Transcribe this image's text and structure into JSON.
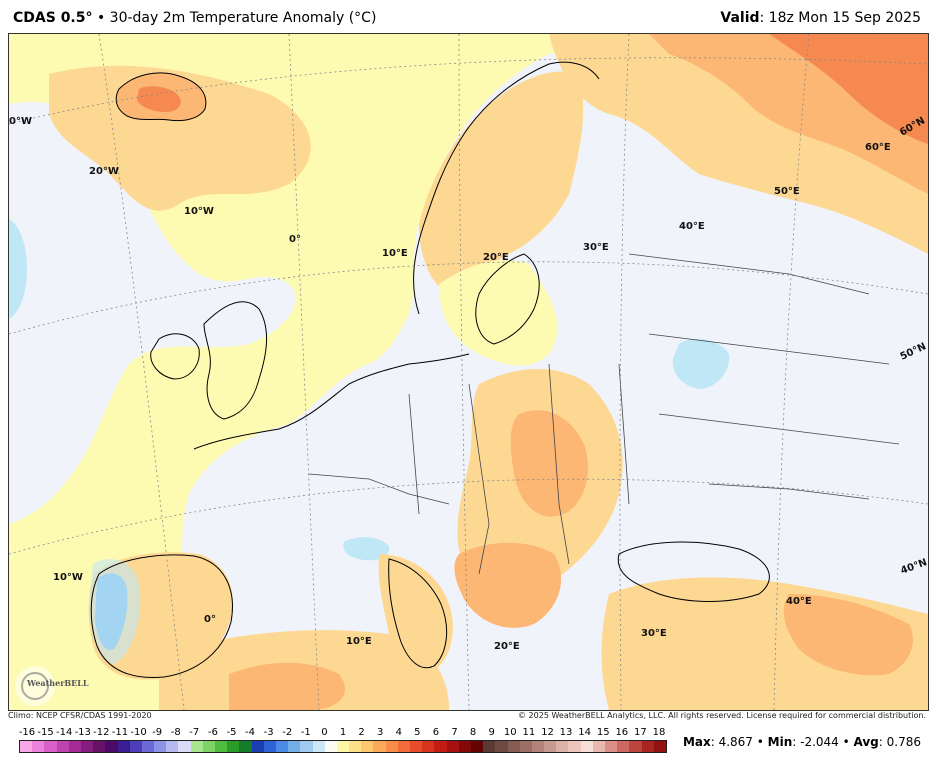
{
  "header": {
    "model": "CDAS 0.5°",
    "separator": " • ",
    "product": "30-day 2m Temperature Anomaly (°C)",
    "valid_label": "Valid",
    "valid_time": ": 18z Mon 15 Sep 2025"
  },
  "map": {
    "background_color": "#f1f3fa",
    "land_near_zero_color": "#fdfab2",
    "warm_color": "#fdd893",
    "warmer_color": "#fbb773",
    "hot_color": "#f5894f",
    "cool_color": "#bfe7f5",
    "cold_color": "#78b6ec",
    "coastline_color": "#000000",
    "border_color": "#444444",
    "graticule_labels": {
      "w30": "0°W",
      "w20": "20°W",
      "w10_top": "10°W",
      "zero_top": "0°",
      "e10_top": "10°E",
      "e20_top": "20°E",
      "e30_top": "30°E",
      "e40_top": "40°E",
      "e50": "50°E",
      "e60": "60°E",
      "n60": "60°N",
      "n50": "50°N",
      "n40": "40°N",
      "w10_bottom": "10°W",
      "zero_bottom": "0°",
      "e10_bottom": "10°E",
      "e20_bottom": "20°E",
      "e30_bottom": "30°E",
      "e40_bottom": "40°E"
    },
    "watermark_text": "WeatherBELL"
  },
  "footer": {
    "climo": "Climo: NCEP CFSR/CDAS 1991-2020",
    "copyright": "© 2025 WeatherBELL Analytics, LLC. All rights reserved. License required for commercial distribution."
  },
  "colorbar": {
    "ticks": [
      "-16",
      "-15",
      "-14",
      "-13",
      "-12",
      "-11",
      "-10",
      "-9",
      "-8",
      "-7",
      "-6",
      "-5",
      "-4",
      "-3",
      "-2",
      "-1",
      "0",
      "1",
      "2",
      "3",
      "4",
      "5",
      "6",
      "7",
      "8",
      "9",
      "10",
      "11",
      "12",
      "13",
      "14",
      "15",
      "16",
      "17",
      "18"
    ],
    "colors": [
      "#f7a6e8",
      "#eb83dc",
      "#d761c8",
      "#c043b2",
      "#a42c99",
      "#861c80",
      "#661266",
      "#4a0a66",
      "#3a1d95",
      "#4d3fb9",
      "#6c68d6",
      "#8c92e6",
      "#b6b9f0",
      "#d9dcf7",
      "#a9e48f",
      "#7fd266",
      "#4fbc3e",
      "#2a9c29",
      "#157c2b",
      "#1a3fb0",
      "#2f62d6",
      "#4b8ae6",
      "#74ade8",
      "#a0cbef",
      "#cbe6f6",
      "#fbfbf3",
      "#fdf7a6",
      "#fde08a",
      "#fdc86e",
      "#fca95c",
      "#f98c49",
      "#f36b39",
      "#e84d2b",
      "#d8331f",
      "#c21d15",
      "#a51010",
      "#840808",
      "#630303",
      "#5a3a33",
      "#6e4a42",
      "#845c52",
      "#9b6f65",
      "#b28378",
      "#c8998e",
      "#dcb1a6",
      "#ecc6bd",
      "#f6ddd6",
      "#e9b8b1",
      "#dc8f88",
      "#cd6862",
      "#bd4540",
      "#a92522",
      "#921210"
    ]
  },
  "stats": {
    "max_label": "Max",
    "max_value": ": 4.867 • ",
    "min_label": "Min",
    "min_value": ": -2.044 • ",
    "avg_label": "Avg",
    "avg_value": ": 0.786"
  }
}
